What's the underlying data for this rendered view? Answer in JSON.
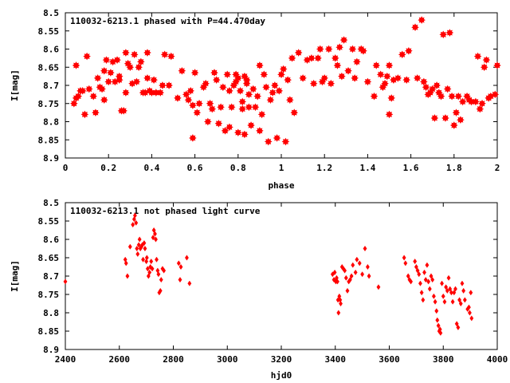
{
  "chart_data": [
    {
      "type": "scatter",
      "title": "110032-6213.1 phased with P=44.470day",
      "xlabel": "phase",
      "ylabel": "I[mag]",
      "xlim": [
        0,
        2
      ],
      "ylim": [
        8.9,
        8.5
      ],
      "y_inverted": true,
      "xticks": [
        0,
        0.2,
        0.4,
        0.6,
        0.8,
        1,
        1.2,
        1.4,
        1.6,
        1.8,
        2
      ],
      "xtick_labels": [
        "0",
        "0.2",
        "0.4",
        "0.6",
        "0.8",
        "1",
        "1.2",
        "1.4",
        "1.6",
        "1.8",
        "2"
      ],
      "yticks": [
        8.5,
        8.55,
        8.6,
        8.65,
        8.7,
        8.75,
        8.8,
        8.85,
        8.9
      ],
      "ytick_labels": [
        "8.5",
        "8.55",
        "8.6",
        "8.65",
        "8.7",
        "8.75",
        "8.8",
        "8.85",
        "8.9"
      ],
      "grid": false,
      "marker": "filled-star",
      "color": "#ff0000",
      "points": [
        [
          0.04,
          8.75
        ],
        [
          0.05,
          8.735
        ],
        [
          0.05,
          8.645
        ],
        [
          0.06,
          8.73
        ],
        [
          0.07,
          8.715
        ],
        [
          0.08,
          8.715
        ],
        [
          0.09,
          8.78
        ],
        [
          0.1,
          8.62
        ],
        [
          0.11,
          8.71
        ],
        [
          0.13,
          8.73
        ],
        [
          0.14,
          8.775
        ],
        [
          0.15,
          8.68
        ],
        [
          0.16,
          8.705
        ],
        [
          0.17,
          8.71
        ],
        [
          0.18,
          8.66
        ],
        [
          0.18,
          8.74
        ],
        [
          0.19,
          8.63
        ],
        [
          0.2,
          8.69
        ],
        [
          0.21,
          8.665
        ],
        [
          0.22,
          8.635
        ],
        [
          0.23,
          8.69
        ],
        [
          0.24,
          8.63
        ],
        [
          0.25,
          8.685
        ],
        [
          0.25,
          8.675
        ],
        [
          0.26,
          8.77
        ],
        [
          0.27,
          8.77
        ],
        [
          0.28,
          8.72
        ],
        [
          0.28,
          8.61
        ],
        [
          0.29,
          8.64
        ],
        [
          0.3,
          8.65
        ],
        [
          0.31,
          8.695
        ],
        [
          0.32,
          8.615
        ],
        [
          0.33,
          8.69
        ],
        [
          0.34,
          8.65
        ],
        [
          0.35,
          8.635
        ],
        [
          0.36,
          8.72
        ],
        [
          0.37,
          8.72
        ],
        [
          0.38,
          8.68
        ],
        [
          0.38,
          8.61
        ],
        [
          0.39,
          8.715
        ],
        [
          0.4,
          8.72
        ],
        [
          0.41,
          8.685
        ],
        [
          0.42,
          8.72
        ],
        [
          0.44,
          8.72
        ],
        [
          0.45,
          8.7
        ],
        [
          0.46,
          8.615
        ],
        [
          0.48,
          8.7
        ],
        [
          0.49,
          8.62
        ],
        [
          0.52,
          8.735
        ],
        [
          0.54,
          8.66
        ],
        [
          0.56,
          8.725
        ],
        [
          0.57,
          8.74
        ],
        [
          0.58,
          8.715
        ],
        [
          0.59,
          8.755
        ],
        [
          0.59,
          8.845
        ],
        [
          0.6,
          8.665
        ],
        [
          0.61,
          8.775
        ],
        [
          0.62,
          8.75
        ],
        [
          0.64,
          8.705
        ],
        [
          0.65,
          8.695
        ],
        [
          0.66,
          8.8
        ],
        [
          0.67,
          8.75
        ],
        [
          0.68,
          8.765
        ],
        [
          0.69,
          8.665
        ],
        [
          0.7,
          8.685
        ],
        [
          0.71,
          8.805
        ],
        [
          0.72,
          8.76
        ],
        [
          0.73,
          8.705
        ],
        [
          0.74,
          8.825
        ],
        [
          0.75,
          8.67
        ],
        [
          0.76,
          8.815
        ],
        [
          0.76,
          8.715
        ],
        [
          0.77,
          8.76
        ],
        [
          0.78,
          8.7
        ],
        [
          0.79,
          8.69
        ],
        [
          0.79,
          8.67
        ],
        [
          0.8,
          8.83
        ],
        [
          0.8,
          8.68
        ],
        [
          0.81,
          8.715
        ],
        [
          0.82,
          8.745
        ],
        [
          0.82,
          8.765
        ],
        [
          0.83,
          8.675
        ],
        [
          0.83,
          8.835
        ],
        [
          0.84,
          8.685
        ],
        [
          0.84,
          8.695
        ],
        [
          0.85,
          8.725
        ],
        [
          0.85,
          8.76
        ],
        [
          0.86,
          8.81
        ],
        [
          0.87,
          8.71
        ],
        [
          0.88,
          8.76
        ],
        [
          0.89,
          8.73
        ],
        [
          0.9,
          8.825
        ],
        [
          0.9,
          8.645
        ],
        [
          0.91,
          8.78
        ],
        [
          0.92,
          8.67
        ],
        [
          0.93,
          8.705
        ],
        [
          0.94,
          8.855
        ],
        [
          0.95,
          8.74
        ],
        [
          0.96,
          8.72
        ],
        [
          0.97,
          8.7
        ],
        [
          0.98,
          8.845
        ],
        [
          0.99,
          8.715
        ],
        [
          1.0,
          8.67
        ],
        [
          1.01,
          8.655
        ],
        [
          1.02,
          8.855
        ],
        [
          1.03,
          8.685
        ],
        [
          1.04,
          8.74
        ],
        [
          1.05,
          8.625
        ],
        [
          1.06,
          8.775
        ],
        [
          1.08,
          8.61
        ],
        [
          1.1,
          8.68
        ],
        [
          1.12,
          8.63
        ],
        [
          1.14,
          8.625
        ],
        [
          1.15,
          8.695
        ],
        [
          1.17,
          8.625
        ],
        [
          1.18,
          8.6
        ],
        [
          1.19,
          8.69
        ],
        [
          1.2,
          8.68
        ],
        [
          1.22,
          8.6
        ],
        [
          1.23,
          8.695
        ],
        [
          1.25,
          8.625
        ],
        [
          1.26,
          8.645
        ],
        [
          1.27,
          8.595
        ],
        [
          1.28,
          8.675
        ],
        [
          1.29,
          8.575
        ],
        [
          1.31,
          8.66
        ],
        [
          1.33,
          8.6
        ],
        [
          1.34,
          8.68
        ],
        [
          1.35,
          8.635
        ],
        [
          1.37,
          8.6
        ],
        [
          1.38,
          8.605
        ],
        [
          1.4,
          8.69
        ],
        [
          1.43,
          8.73
        ],
        [
          1.44,
          8.645
        ],
        [
          1.46,
          8.67
        ],
        [
          1.47,
          8.705
        ],
        [
          1.48,
          8.695
        ],
        [
          1.49,
          8.675
        ],
        [
          1.5,
          8.645
        ],
        [
          1.5,
          8.78
        ],
        [
          1.51,
          8.735
        ],
        [
          1.52,
          8.685
        ],
        [
          1.54,
          8.68
        ],
        [
          1.56,
          8.615
        ],
        [
          1.58,
          8.685
        ],
        [
          1.59,
          8.605
        ],
        [
          1.62,
          8.54
        ],
        [
          1.63,
          8.68
        ],
        [
          1.65,
          8.52
        ],
        [
          1.66,
          8.69
        ],
        [
          1.67,
          8.705
        ],
        [
          1.68,
          8.725
        ],
        [
          1.69,
          8.72
        ],
        [
          1.7,
          8.71
        ],
        [
          1.71,
          8.79
        ],
        [
          1.72,
          8.7
        ],
        [
          1.73,
          8.72
        ],
        [
          1.74,
          8.73
        ],
        [
          1.75,
          8.56
        ],
        [
          1.76,
          8.79
        ],
        [
          1.77,
          8.71
        ],
        [
          1.78,
          8.555
        ],
        [
          1.79,
          8.73
        ],
        [
          1.8,
          8.81
        ],
        [
          1.81,
          8.775
        ],
        [
          1.82,
          8.73
        ],
        [
          1.83,
          8.795
        ],
        [
          1.84,
          8.745
        ],
        [
          1.86,
          8.73
        ],
        [
          1.87,
          8.74
        ],
        [
          1.88,
          8.745
        ],
        [
          1.9,
          8.745
        ],
        [
          1.91,
          8.62
        ],
        [
          1.92,
          8.765
        ],
        [
          1.93,
          8.75
        ],
        [
          1.94,
          8.65
        ],
        [
          1.95,
          8.63
        ],
        [
          1.96,
          8.735
        ],
        [
          1.97,
          8.73
        ],
        [
          1.99,
          8.725
        ],
        [
          2.0,
          8.645
        ]
      ]
    },
    {
      "type": "scatter",
      "title": "110032-6213.1 not phased light curve",
      "xlabel": "hjd0",
      "ylabel": "I[mag]",
      "xlim": [
        2400,
        4000
      ],
      "ylim": [
        8.9,
        8.5
      ],
      "y_inverted": true,
      "xticks": [
        2400,
        2600,
        2800,
        3000,
        3200,
        3400,
        3600,
        3800,
        4000
      ],
      "xtick_labels": [
        "2400",
        "2600",
        "2800",
        "3000",
        "3200",
        "3400",
        "3600",
        "3800",
        "4000"
      ],
      "yticks": [
        8.5,
        8.55,
        8.6,
        8.65,
        8.7,
        8.75,
        8.8,
        8.85,
        8.9
      ],
      "ytick_labels": [
        "8.5",
        "8.55",
        "8.6",
        "8.65",
        "8.7",
        "8.75",
        "8.8",
        "8.85",
        "8.9"
      ],
      "grid": false,
      "marker": "diamond",
      "color": "#ff0000",
      "points": [
        [
          2400,
          8.715
        ],
        [
          2622,
          8.655
        ],
        [
          2625,
          8.665
        ],
        [
          2630,
          8.7
        ],
        [
          2640,
          8.62
        ],
        [
          2650,
          8.56
        ],
        [
          2655,
          8.545
        ],
        [
          2658,
          8.535
        ],
        [
          2662,
          8.555
        ],
        [
          2665,
          8.625
        ],
        [
          2668,
          8.64
        ],
        [
          2672,
          8.615
        ],
        [
          2675,
          8.6
        ],
        [
          2678,
          8.625
        ],
        [
          2682,
          8.62
        ],
        [
          2685,
          8.615
        ],
        [
          2688,
          8.655
        ],
        [
          2692,
          8.61
        ],
        [
          2695,
          8.625
        ],
        [
          2700,
          8.66
        ],
        [
          2702,
          8.65
        ],
        [
          2705,
          8.68
        ],
        [
          2708,
          8.7
        ],
        [
          2712,
          8.69
        ],
        [
          2715,
          8.675
        ],
        [
          2718,
          8.66
        ],
        [
          2722,
          8.68
        ],
        [
          2725,
          8.595
        ],
        [
          2728,
          8.575
        ],
        [
          2732,
          8.585
        ],
        [
          2735,
          8.6
        ],
        [
          2738,
          8.655
        ],
        [
          2742,
          8.685
        ],
        [
          2745,
          8.695
        ],
        [
          2748,
          8.745
        ],
        [
          2752,
          8.74
        ],
        [
          2755,
          8.71
        ],
        [
          2760,
          8.68
        ],
        [
          2765,
          8.685
        ],
        [
          2820,
          8.665
        ],
        [
          2825,
          8.71
        ],
        [
          2828,
          8.675
        ],
        [
          2850,
          8.65
        ],
        [
          2860,
          8.72
        ],
        [
          3390,
          8.695
        ],
        [
          3395,
          8.71
        ],
        [
          3398,
          8.69
        ],
        [
          3402,
          8.715
        ],
        [
          3405,
          8.705
        ],
        [
          3408,
          8.715
        ],
        [
          3410,
          8.765
        ],
        [
          3412,
          8.8
        ],
        [
          3415,
          8.755
        ],
        [
          3418,
          8.765
        ],
        [
          3420,
          8.775
        ],
        [
          3425,
          8.675
        ],
        [
          3430,
          8.68
        ],
        [
          3435,
          8.685
        ],
        [
          3440,
          8.705
        ],
        [
          3445,
          8.74
        ],
        [
          3450,
          8.715
        ],
        [
          3455,
          8.71
        ],
        [
          3460,
          8.7
        ],
        [
          3465,
          8.67
        ],
        [
          3475,
          8.69
        ],
        [
          3480,
          8.655
        ],
        [
          3490,
          8.665
        ],
        [
          3500,
          8.695
        ],
        [
          3510,
          8.625
        ],
        [
          3520,
          8.675
        ],
        [
          3525,
          8.7
        ],
        [
          3560,
          8.73
        ],
        [
          3655,
          8.65
        ],
        [
          3660,
          8.665
        ],
        [
          3670,
          8.7
        ],
        [
          3675,
          8.71
        ],
        [
          3680,
          8.715
        ],
        [
          3695,
          8.66
        ],
        [
          3700,
          8.675
        ],
        [
          3705,
          8.685
        ],
        [
          3710,
          8.695
        ],
        [
          3715,
          8.72
        ],
        [
          3720,
          8.745
        ],
        [
          3725,
          8.765
        ],
        [
          3730,
          8.69
        ],
        [
          3735,
          8.71
        ],
        [
          3740,
          8.67
        ],
        [
          3745,
          8.715
        ],
        [
          3750,
          8.735
        ],
        [
          3755,
          8.7
        ],
        [
          3760,
          8.71
        ],
        [
          3765,
          8.755
        ],
        [
          3770,
          8.77
        ],
        [
          3775,
          8.795
        ],
        [
          3778,
          8.82
        ],
        [
          3782,
          8.835
        ],
        [
          3785,
          8.85
        ],
        [
          3788,
          8.845
        ],
        [
          3790,
          8.855
        ],
        [
          3795,
          8.72
        ],
        [
          3800,
          8.755
        ],
        [
          3805,
          8.77
        ],
        [
          3810,
          8.73
        ],
        [
          3815,
          8.74
        ],
        [
          3820,
          8.705
        ],
        [
          3825,
          8.735
        ],
        [
          3830,
          8.745
        ],
        [
          3835,
          8.77
        ],
        [
          3840,
          8.745
        ],
        [
          3845,
          8.735
        ],
        [
          3850,
          8.83
        ],
        [
          3855,
          8.84
        ],
        [
          3860,
          8.765
        ],
        [
          3865,
          8.775
        ],
        [
          3870,
          8.72
        ],
        [
          3875,
          8.74
        ],
        [
          3880,
          8.765
        ],
        [
          3890,
          8.79
        ],
        [
          3895,
          8.785
        ],
        [
          3898,
          8.8
        ],
        [
          3902,
          8.745
        ],
        [
          3905,
          8.815
        ]
      ]
    }
  ]
}
